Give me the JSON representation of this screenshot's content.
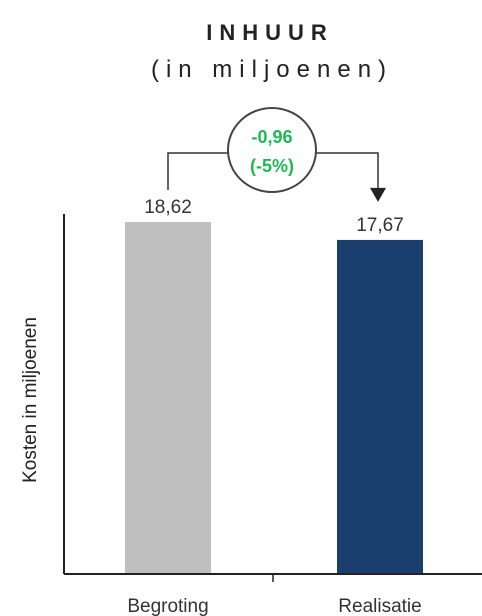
{
  "chart_data": {
    "type": "bar",
    "title": "INHUUR",
    "subtitle": "(in miljoenen)",
    "ylabel": "Kosten in miljoenen",
    "xlabel": "",
    "categories": [
      "Begroting",
      "Realisatie"
    ],
    "values": [
      18.62,
      17.67
    ],
    "value_labels": [
      "18,62",
      "17,67"
    ],
    "ylim": [
      0,
      20
    ],
    "grid": false,
    "legend": "none",
    "annotation": {
      "type": "difference",
      "from": "Begroting",
      "to": "Realisatie",
      "line1": "-0,96",
      "line2": "(-5%)",
      "color": "#1db954"
    },
    "colors": [
      "#bfbfbf",
      "#1a3f6f"
    ]
  }
}
